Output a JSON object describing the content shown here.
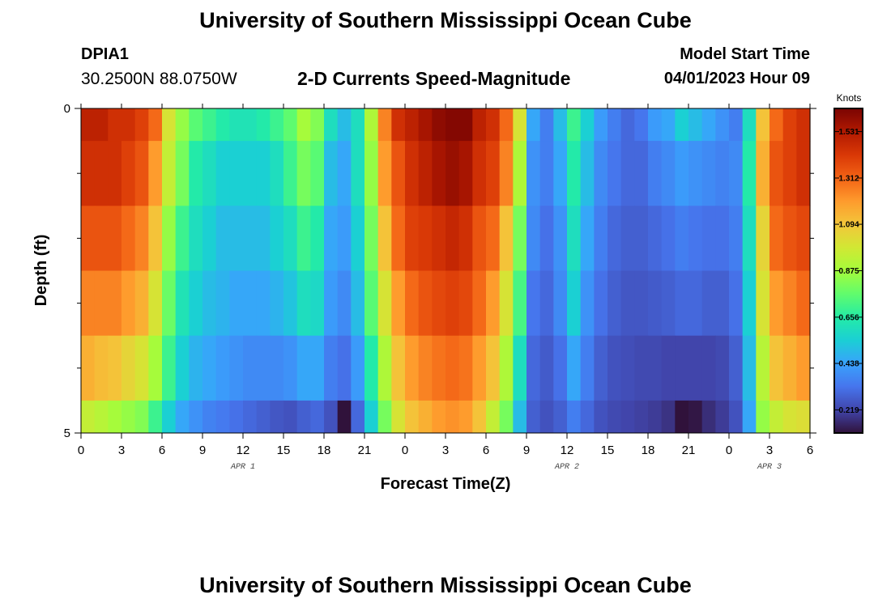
{
  "header": {
    "title": "University of Southern Mississippi Ocean Cube",
    "station": "DPIA1",
    "coordinates": "30.2500N  88.0750W",
    "subtitle": "2-D Currents Speed-Magnitude",
    "model_start_label": "Model Start Time",
    "model_start_value": "04/01/2023 Hour 09"
  },
  "footer": {
    "title": "University of Southern Mississippi Ocean Cube"
  },
  "chart_data": {
    "type": "heatmap",
    "title": "2-D Currents Speed-Magnitude",
    "xlabel": "Forecast Time(Z)",
    "ylabel": "Depth (ft)",
    "colorbar_label": "Knots",
    "x_hours": [
      0,
      1,
      2,
      3,
      4,
      5,
      6,
      7,
      8,
      9,
      10,
      11,
      12,
      13,
      14,
      15,
      16,
      17,
      18,
      19,
      20,
      21,
      22,
      23,
      24,
      25,
      26,
      27,
      28,
      29,
      30,
      31,
      32,
      33,
      34,
      35,
      36,
      37,
      38,
      39,
      40,
      41,
      42,
      43,
      44,
      45,
      46,
      47,
      48,
      49,
      50,
      51,
      52,
      53,
      54
    ],
    "x_tick_labels": [
      "0",
      "3",
      "6",
      "9",
      "12",
      "15",
      "18",
      "21",
      "0",
      "3",
      "6",
      "9",
      "12",
      "15",
      "18",
      "21",
      "0",
      "3",
      "6"
    ],
    "date_labels": [
      {
        "label": "APR 1",
        "hour": 12
      },
      {
        "label": "APR 2",
        "hour": 36
      },
      {
        "label": "APR 3",
        "hour": 51
      }
    ],
    "y_range": [
      0,
      5
    ],
    "y_tick_labels": [
      "0",
      "5"
    ],
    "colorbar": {
      "min": 0.11,
      "max": 1.64,
      "tick_values": [
        0.219,
        0.438,
        0.656,
        0.875,
        1.094,
        1.312,
        1.531
      ],
      "tick_labels": [
        "0.219",
        "0.438",
        "0.656",
        "0.875",
        "1.094",
        "1.312",
        "1.531"
      ]
    },
    "colorscale": [
      "#30123b",
      "#4145ab",
      "#4675ed",
      "#39a2fc",
      "#1bcfd4",
      "#24eca6",
      "#61fc6c",
      "#a4fc3b",
      "#d1e834",
      "#f3c63a",
      "#fe9b2d",
      "#f36315",
      "#d93806",
      "#b11901",
      "#7a0402"
    ],
    "rows": [
      {
        "depth_bottom": 0.5,
        "values": [
          1.5,
          1.5,
          1.45,
          1.45,
          1.4,
          1.3,
          1.0,
          0.85,
          0.75,
          0.7,
          0.65,
          0.62,
          0.62,
          0.65,
          0.7,
          0.76,
          0.88,
          0.82,
          0.6,
          0.5,
          0.6,
          0.9,
          1.25,
          1.45,
          1.5,
          1.55,
          1.6,
          1.62,
          1.62,
          1.5,
          1.45,
          1.3,
          1.0,
          0.45,
          0.35,
          0.5,
          0.7,
          0.55,
          0.42,
          0.35,
          0.3,
          0.33,
          0.42,
          0.45,
          0.55,
          0.5,
          0.45,
          0.4,
          0.35,
          0.6,
          1.1,
          1.3,
          1.4,
          1.45,
          1.5
        ]
      },
      {
        "depth_bottom": 1.5,
        "values": [
          1.45,
          1.45,
          1.45,
          1.4,
          1.35,
          1.2,
          0.95,
          0.8,
          0.65,
          0.6,
          0.55,
          0.55,
          0.55,
          0.55,
          0.6,
          0.7,
          0.8,
          0.75,
          0.5,
          0.45,
          0.6,
          0.85,
          1.2,
          1.35,
          1.45,
          1.5,
          1.55,
          1.58,
          1.55,
          1.45,
          1.4,
          1.25,
          0.9,
          0.4,
          0.35,
          0.45,
          0.65,
          0.5,
          0.38,
          0.33,
          0.3,
          0.3,
          0.35,
          0.38,
          0.42,
          0.4,
          0.38,
          0.36,
          0.38,
          0.65,
          1.15,
          1.35,
          1.4,
          1.45,
          1.45
        ]
      },
      {
        "depth_bottom": 2.5,
        "values": [
          1.35,
          1.35,
          1.35,
          1.3,
          1.25,
          1.1,
          0.85,
          0.7,
          0.6,
          0.55,
          0.5,
          0.5,
          0.5,
          0.5,
          0.55,
          0.6,
          0.7,
          0.65,
          0.45,
          0.42,
          0.55,
          0.8,
          1.1,
          1.3,
          1.4,
          1.42,
          1.45,
          1.48,
          1.45,
          1.35,
          1.3,
          1.1,
          0.8,
          0.38,
          0.32,
          0.4,
          0.6,
          0.45,
          0.35,
          0.3,
          0.28,
          0.28,
          0.3,
          0.32,
          0.35,
          0.33,
          0.32,
          0.32,
          0.35,
          0.6,
          1.05,
          1.3,
          1.35,
          1.38,
          1.4
        ]
      },
      {
        "depth_bottom": 3.5,
        "values": [
          1.25,
          1.25,
          1.25,
          1.2,
          1.15,
          1.0,
          0.78,
          0.62,
          0.55,
          0.5,
          0.48,
          0.45,
          0.45,
          0.45,
          0.48,
          0.52,
          0.6,
          0.58,
          0.42,
          0.38,
          0.5,
          0.75,
          1.0,
          1.2,
          1.3,
          1.35,
          1.38,
          1.4,
          1.38,
          1.3,
          1.2,
          1.0,
          0.72,
          0.33,
          0.3,
          0.38,
          0.55,
          0.4,
          0.32,
          0.28,
          0.26,
          0.26,
          0.27,
          0.28,
          0.3,
          0.3,
          0.28,
          0.28,
          0.32,
          0.55,
          1.0,
          1.2,
          1.25,
          1.3,
          1.3
        ]
      },
      {
        "depth_bottom": 4.5,
        "values": [
          1.15,
          1.12,
          1.1,
          1.05,
          1.0,
          0.88,
          0.7,
          0.55,
          0.48,
          0.45,
          0.42,
          0.4,
          0.38,
          0.38,
          0.38,
          0.4,
          0.45,
          0.45,
          0.35,
          0.32,
          0.42,
          0.65,
          0.9,
          1.1,
          1.2,
          1.25,
          1.28,
          1.3,
          1.28,
          1.2,
          1.1,
          0.9,
          0.6,
          0.3,
          0.27,
          0.32,
          0.45,
          0.35,
          0.28,
          0.25,
          0.24,
          0.23,
          0.23,
          0.22,
          0.22,
          0.22,
          0.22,
          0.23,
          0.28,
          0.5,
          0.92,
          1.1,
          1.15,
          1.2,
          1.2
        ]
      },
      {
        "depth_bottom": 5.0,
        "values": [
          0.95,
          0.92,
          0.88,
          0.85,
          0.82,
          0.7,
          0.55,
          0.45,
          0.4,
          0.36,
          0.34,
          0.32,
          0.3,
          0.28,
          0.26,
          0.25,
          0.28,
          0.3,
          0.25,
          0.11,
          0.3,
          0.55,
          0.8,
          1.0,
          1.1,
          1.15,
          1.2,
          1.22,
          1.2,
          1.1,
          0.95,
          0.8,
          0.5,
          0.28,
          0.25,
          0.28,
          0.35,
          0.3,
          0.25,
          0.23,
          0.22,
          0.21,
          0.2,
          0.18,
          0.1,
          0.12,
          0.17,
          0.2,
          0.25,
          0.45,
          0.85,
          0.95,
          1.0,
          1.02,
          1.05
        ]
      }
    ]
  }
}
